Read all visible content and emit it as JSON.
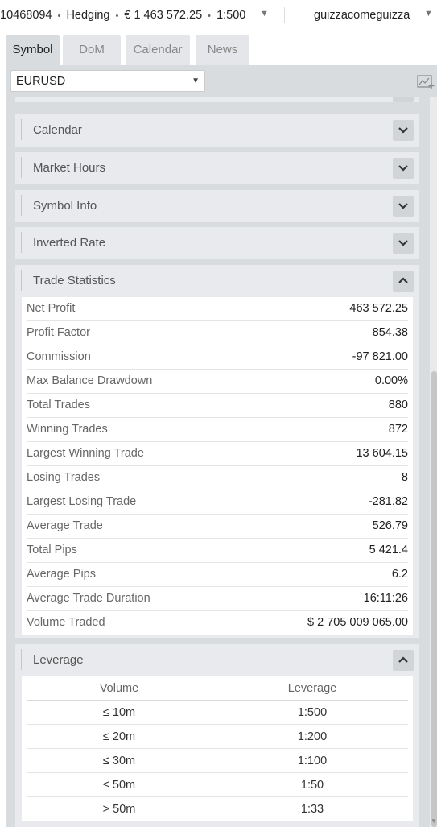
{
  "header": {
    "account_id": "10468094",
    "account_mode": "Hedging",
    "balance": "€ 1 463 572.25",
    "leverage": "1:500",
    "separator": "•",
    "dropdown_arrow": "▼",
    "username": "guizzacomeguizza"
  },
  "tabs": [
    {
      "label": "Symbol",
      "active": true
    },
    {
      "label": "DoM",
      "active": false
    },
    {
      "label": "Calendar",
      "active": false
    },
    {
      "label": "News",
      "active": false
    }
  ],
  "symbol": {
    "selected": "EURUSD",
    "arrow": "▼"
  },
  "sections": [
    {
      "title": "Calendar",
      "expanded": false
    },
    {
      "title": "Market Hours",
      "expanded": false
    },
    {
      "title": "Symbol Info",
      "expanded": false
    },
    {
      "title": "Inverted Rate",
      "expanded": false
    }
  ],
  "trade_statistics": {
    "title": "Trade Statistics",
    "rows": [
      {
        "label": "Net Profit",
        "value": "463 572.25"
      },
      {
        "label": "Profit Factor",
        "value": "854.38"
      },
      {
        "label": "Commission",
        "value": "-97 821.00"
      },
      {
        "label": "Max Balance Drawdown",
        "value": "0.00%"
      },
      {
        "label": "Total Trades",
        "value": "880"
      },
      {
        "label": "Winning Trades",
        "value": "872"
      },
      {
        "label": "Largest Winning Trade",
        "value": "13 604.15"
      },
      {
        "label": "Losing Trades",
        "value": "8"
      },
      {
        "label": "Largest Losing Trade",
        "value": "-281.82"
      },
      {
        "label": "Average Trade",
        "value": "526.79"
      },
      {
        "label": "Total Pips",
        "value": "5 421.4"
      },
      {
        "label": "Average Pips",
        "value": "6.2"
      },
      {
        "label": "Average Trade Duration",
        "value": "16:11:26"
      },
      {
        "label": "Volume Traded",
        "value": "$ 2 705 009 065.00"
      }
    ]
  },
  "leverage": {
    "title": "Leverage",
    "columns": [
      "Volume",
      "Leverage"
    ],
    "rows": [
      {
        "volume": "≤ 10m",
        "leverage": "1:500"
      },
      {
        "volume": "≤ 20m",
        "leverage": "1:200"
      },
      {
        "volume": "≤ 30m",
        "leverage": "1:100"
      },
      {
        "volume": "≤ 50m",
        "leverage": "1:50"
      },
      {
        "volume": "> 50m",
        "leverage": "1:33"
      }
    ]
  },
  "colors": {
    "panel_bg": "#d9dcdf",
    "section_bg": "#e8eaed",
    "toggle_bg": "#d2d5d8"
  }
}
